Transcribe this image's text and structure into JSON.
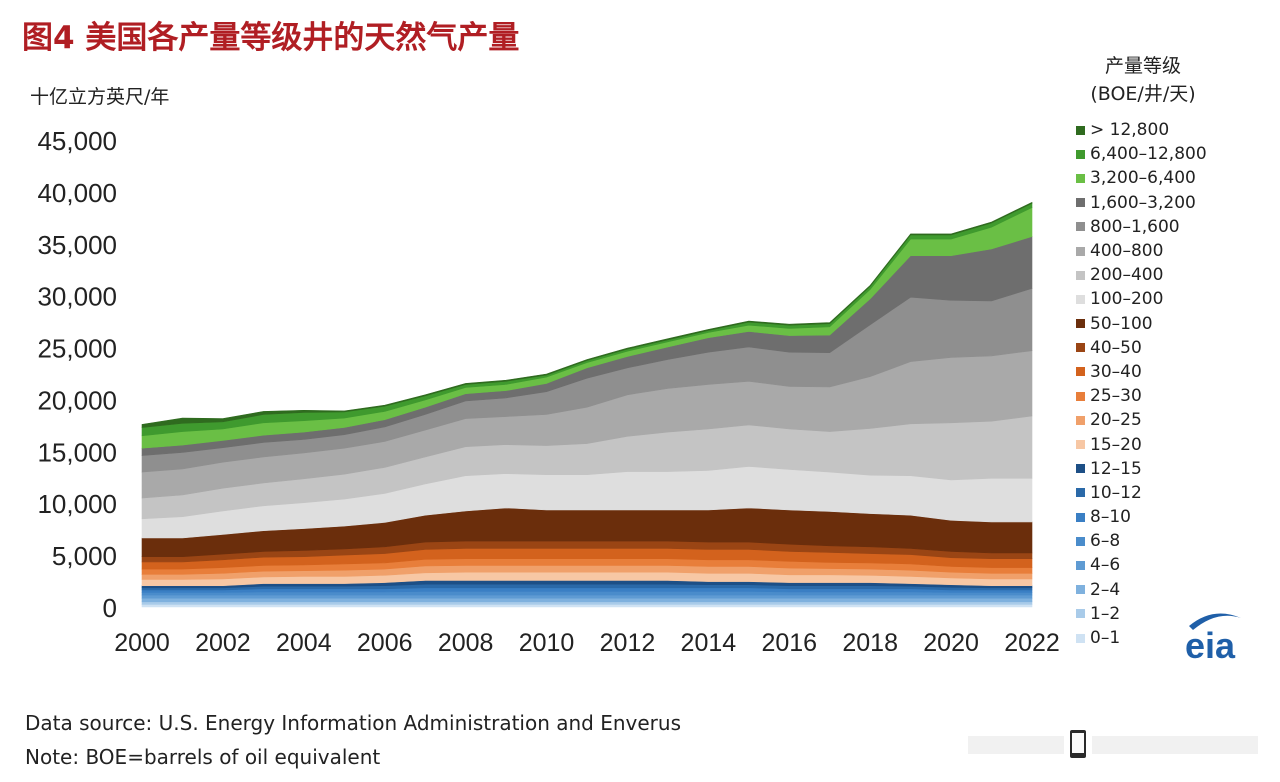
{
  "header": {
    "title": "图4  美国各产量等级井的天然气产量",
    "y_unit": "十亿立方英尺/年"
  },
  "legend": {
    "title_line1": "产量等级",
    "title_line2": "(BOE/井/天)"
  },
  "footer": {
    "source": "Data source: U.S. Energy Information Administration and Enverus",
    "note": "Note: BOE=barrels of oil equivalent"
  },
  "logo": {
    "text": "eia",
    "icon": "eia-logo-icon",
    "color": "#1f5fa8"
  },
  "chart_data": {
    "type": "area",
    "stacked": true,
    "title": "图4  美国各产量等级井的天然气产量",
    "xlabel": "",
    "ylabel": "十亿立方英尺/年",
    "x": [
      2000,
      2001,
      2002,
      2003,
      2004,
      2005,
      2006,
      2007,
      2008,
      2009,
      2010,
      2011,
      2012,
      2013,
      2014,
      2015,
      2016,
      2017,
      2018,
      2019,
      2020,
      2021,
      2022
    ],
    "x_ticks": [
      "2000",
      "2002",
      "2004",
      "2006",
      "2008",
      "2010",
      "2012",
      "2014",
      "2016",
      "2018",
      "2020",
      "2022"
    ],
    "ylim": [
      0,
      45000
    ],
    "y_ticks": [
      "0",
      "5,000",
      "10,000",
      "15,000",
      "20,000",
      "25,000",
      "30,000",
      "35,000",
      "40,000",
      "45,000"
    ],
    "legend_position": "right",
    "grid": false,
    "series": [
      {
        "name": "0–1",
        "color": "#cfe2f3",
        "values": [
          250,
          250,
          250,
          250,
          250,
          250,
          250,
          250,
          250,
          250,
          250,
          250,
          250,
          250,
          250,
          250,
          250,
          250,
          250,
          250,
          250,
          250,
          250
        ]
      },
      {
        "name": "1–2",
        "color": "#a9cbe9",
        "values": [
          250,
          250,
          250,
          250,
          250,
          250,
          250,
          250,
          250,
          250,
          250,
          250,
          250,
          250,
          250,
          250,
          250,
          250,
          250,
          250,
          250,
          250,
          250
        ]
      },
      {
        "name": "2–4",
        "color": "#7fb1de",
        "values": [
          350,
          350,
          350,
          350,
          350,
          350,
          350,
          350,
          350,
          350,
          350,
          350,
          350,
          350,
          350,
          350,
          350,
          350,
          350,
          350,
          350,
          350,
          350
        ]
      },
      {
        "name": "4–6",
        "color": "#5f9bd3",
        "values": [
          300,
          300,
          300,
          300,
          300,
          300,
          300,
          300,
          300,
          300,
          300,
          300,
          300,
          300,
          300,
          300,
          300,
          300,
          300,
          300,
          300,
          300,
          300
        ]
      },
      {
        "name": "6–8",
        "color": "#4a8ccb",
        "values": [
          250,
          250,
          250,
          300,
          300,
          300,
          300,
          350,
          350,
          350,
          350,
          350,
          350,
          350,
          350,
          350,
          300,
          300,
          300,
          300,
          250,
          250,
          250
        ]
      },
      {
        "name": "8–10",
        "color": "#3a7fc4",
        "values": [
          250,
          250,
          250,
          300,
          300,
          300,
          300,
          350,
          350,
          350,
          350,
          350,
          350,
          350,
          350,
          350,
          300,
          300,
          300,
          300,
          250,
          250,
          250
        ]
      },
      {
        "name": "10–12",
        "color": "#2a69a8",
        "values": [
          200,
          200,
          200,
          250,
          250,
          250,
          300,
          350,
          350,
          350,
          350,
          350,
          350,
          350,
          300,
          300,
          300,
          300,
          300,
          250,
          250,
          200,
          200
        ]
      },
      {
        "name": "12–15",
        "color": "#1d4f86",
        "values": [
          200,
          200,
          200,
          250,
          250,
          250,
          300,
          350,
          350,
          350,
          350,
          350,
          350,
          350,
          300,
          300,
          300,
          300,
          300,
          250,
          250,
          200,
          200
        ]
      },
      {
        "name": "15–20",
        "color": "#f7c7a4",
        "values": [
          600,
          600,
          650,
          650,
          700,
          700,
          700,
          750,
          800,
          800,
          800,
          800,
          800,
          800,
          800,
          800,
          750,
          750,
          700,
          700,
          650,
          650,
          650
        ]
      },
      {
        "name": "20–25",
        "color": "#f0a06a",
        "values": [
          500,
          500,
          550,
          550,
          550,
          600,
          600,
          650,
          650,
          650,
          650,
          650,
          650,
          650,
          650,
          650,
          650,
          600,
          600,
          600,
          550,
          550,
          550
        ]
      },
      {
        "name": "25–30",
        "color": "#e87e3a",
        "values": [
          500,
          500,
          550,
          550,
          550,
          600,
          600,
          650,
          650,
          650,
          650,
          650,
          650,
          650,
          650,
          650,
          650,
          600,
          600,
          600,
          550,
          550,
          550
        ]
      },
      {
        "name": "30–40",
        "color": "#d3621d",
        "values": [
          700,
          700,
          750,
          800,
          800,
          850,
          900,
          950,
          1000,
          1000,
          1000,
          1000,
          1000,
          1000,
          1000,
          1000,
          950,
          950,
          900,
          900,
          850,
          850,
          850
        ]
      },
      {
        "name": "40–50",
        "color": "#9a4514",
        "values": [
          500,
          500,
          550,
          550,
          600,
          600,
          650,
          700,
          700,
          700,
          700,
          700,
          700,
          700,
          700,
          700,
          700,
          650,
          650,
          600,
          600,
          550,
          550
        ]
      },
      {
        "name": "50–100",
        "color": "#6b2e0c",
        "values": [
          1800,
          1800,
          1900,
          2000,
          2100,
          2200,
          2350,
          2600,
          2900,
          3200,
          3000,
          3000,
          3000,
          3000,
          3100,
          3300,
          3300,
          3300,
          3200,
          3200,
          3000,
          3000,
          3000
        ]
      },
      {
        "name": "100–200",
        "color": "#dedede",
        "values": [
          1850,
          2050,
          2250,
          2400,
          2500,
          2600,
          2800,
          3000,
          3400,
          3300,
          3400,
          3400,
          3700,
          3700,
          3800,
          4000,
          3900,
          3800,
          3700,
          3800,
          3900,
          4200,
          4200
        ]
      },
      {
        "name": "200–400",
        "color": "#c4c4c4",
        "values": [
          2000,
          2100,
          2200,
          2200,
          2300,
          2400,
          2500,
          2600,
          2800,
          2800,
          2800,
          3000,
          3400,
          3800,
          4000,
          4000,
          3900,
          3900,
          4500,
          5000,
          5500,
          5500,
          6000
        ]
      },
      {
        "name": "400–800",
        "color": "#a9a9a9",
        "values": [
          2500,
          2500,
          2500,
          2500,
          2500,
          2500,
          2500,
          2600,
          2700,
          2700,
          3000,
          3500,
          4000,
          4200,
          4300,
          4200,
          4100,
          4300,
          5000,
          6000,
          6300,
          6300,
          6300
        ]
      },
      {
        "name": "800–1,600",
        "color": "#8f8f8f",
        "values": [
          1600,
          1600,
          1400,
          1400,
          1300,
          1300,
          1400,
          1500,
          1700,
          1800,
          2200,
          2800,
          2600,
          2800,
          3100,
          3300,
          3300,
          3300,
          5000,
          6200,
          5500,
          5300,
          6000
        ]
      },
      {
        "name": "1,600–3,200",
        "color": "#6e6e6e",
        "values": [
          700,
          700,
          700,
          700,
          700,
          700,
          700,
          700,
          700,
          700,
          800,
          1000,
          1100,
          1200,
          1400,
          1500,
          1600,
          1700,
          2500,
          4000,
          4300,
          5000,
          5000
        ]
      },
      {
        "name": "3,200–6,400",
        "color": "#6abf45",
        "values": [
          1200,
          1300,
          1100,
          1200,
          1100,
          900,
          800,
          700,
          600,
          600,
          600,
          500,
          500,
          500,
          500,
          600,
          700,
          800,
          900,
          1600,
          1600,
          2100,
          2800
        ]
      },
      {
        "name": "6,400–12,800",
        "color": "#3f9a2e",
        "values": [
          800,
          800,
          700,
          800,
          800,
          600,
          500,
          400,
          300,
          300,
          200,
          200,
          200,
          200,
          200,
          300,
          300,
          300,
          300,
          400,
          400,
          400,
          400
        ]
      },
      {
        "name": "> 12,800",
        "color": "#2f6b1f",
        "values": [
          300,
          500,
          300,
          300,
          200,
          100,
          100,
          100,
          100,
          100,
          100,
          100,
          100,
          100,
          100,
          100,
          100,
          100,
          100,
          100,
          100,
          100,
          100
        ]
      }
    ]
  }
}
